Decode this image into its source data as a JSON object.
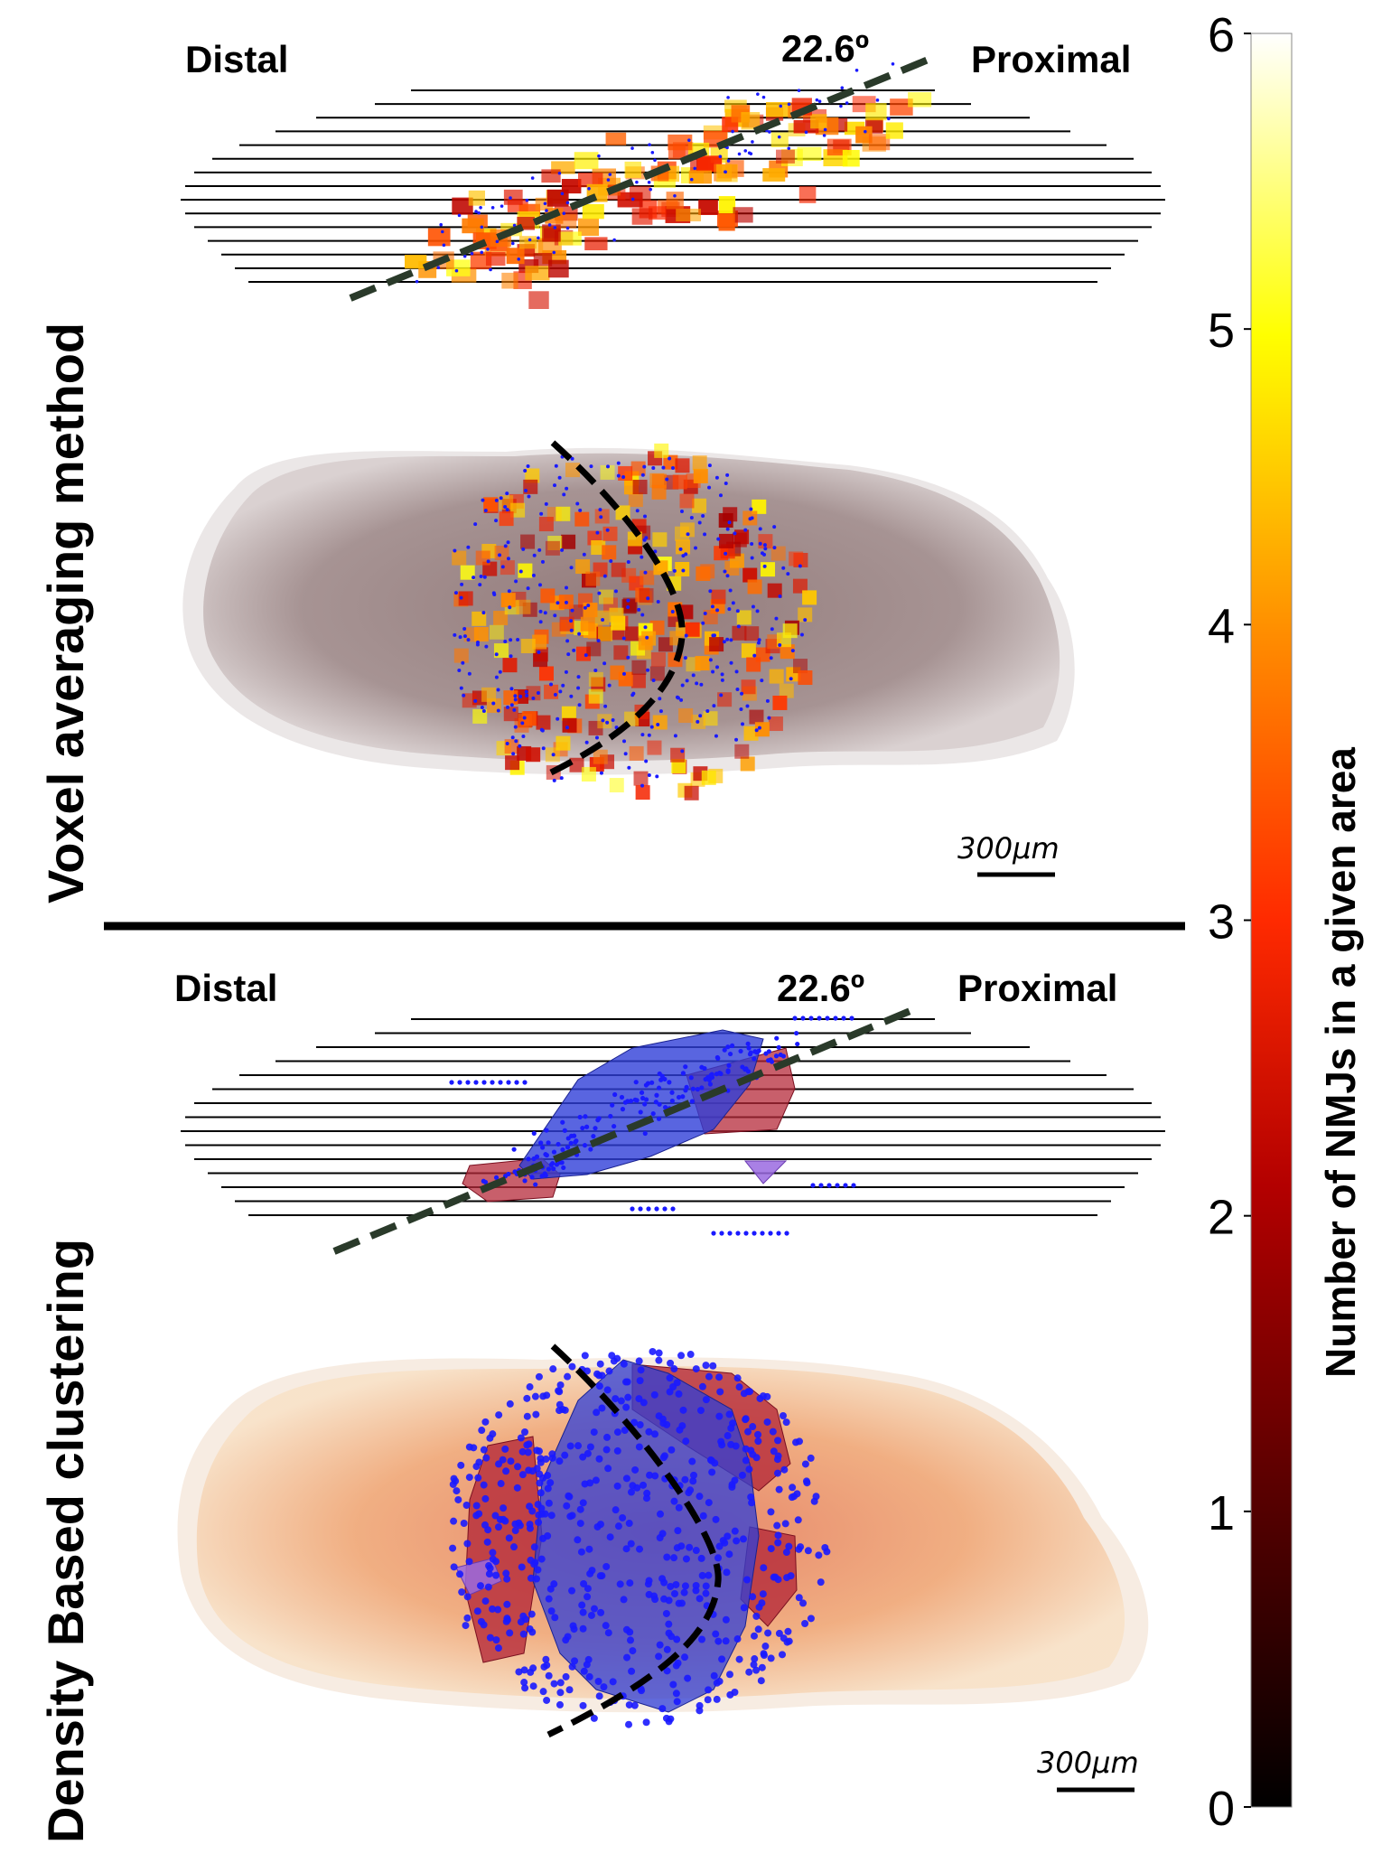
{
  "panels": [
    {
      "id": "voxel",
      "side_label": "Voxel averaging method",
      "distal": "Distal",
      "proximal": "Proximal",
      "angle": "22.6º",
      "scale_bar": "300µm"
    },
    {
      "id": "dbscan",
      "side_label": "Density Based clustering",
      "distal": "Distal",
      "proximal": "Proximal",
      "angle": "22.6º",
      "scale_bar": "300µm"
    }
  ],
  "colorbar": {
    "label": "Number of NMJs in a given area",
    "ticks": [
      "6",
      "5",
      "4",
      "3",
      "2",
      "1",
      "0"
    ],
    "min": 0,
    "max": 6,
    "colors": [
      "#000000",
      "#5a0000",
      "#b30000",
      "#ff2a00",
      "#ff8c00",
      "#ffff00",
      "#ffffff"
    ]
  },
  "colors": {
    "nmj_points": "#1a1aff",
    "cluster_blue": "#2f3fd8",
    "cluster_red": "#b52a3a",
    "muscle_voxel": "#a08a8a",
    "muscle_dbscan": "#f0b080",
    "dashed_line": "#2a3a2a"
  }
}
